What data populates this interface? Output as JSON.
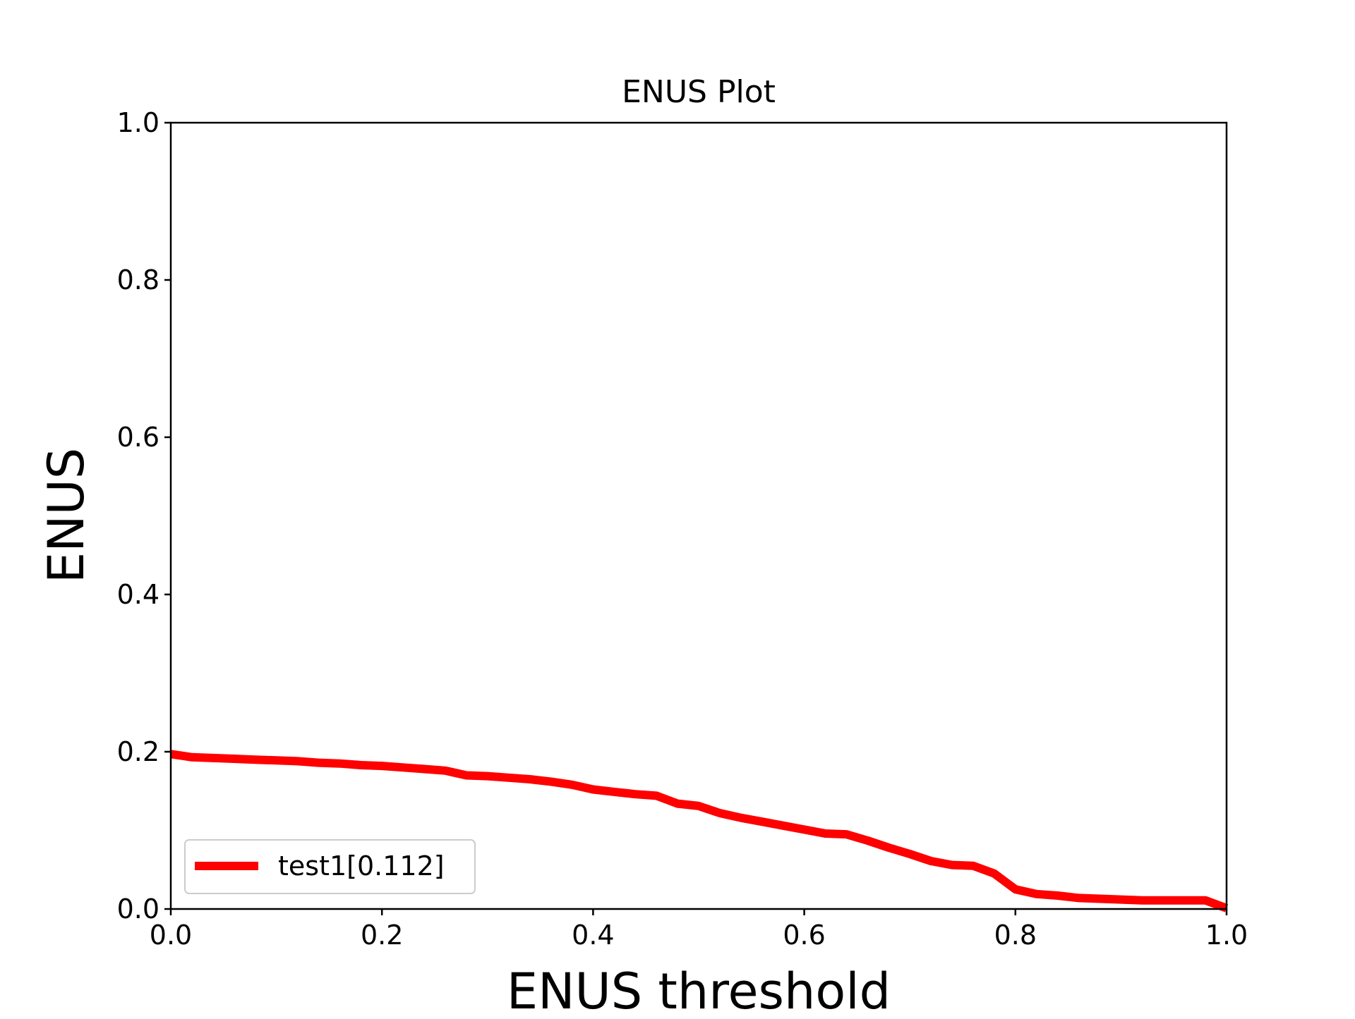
{
  "chart_data": {
    "type": "line",
    "title": "ENUS Plot",
    "xlabel": "ENUS threshold",
    "ylabel": "ENUS",
    "xlim": [
      0.0,
      1.0
    ],
    "ylim": [
      0.0,
      1.0
    ],
    "xticks": [
      "0.0",
      "0.2",
      "0.4",
      "0.6",
      "0.8",
      "1.0"
    ],
    "yticks": [
      "0.0",
      "0.2",
      "0.4",
      "0.6",
      "0.8",
      "1.0"
    ],
    "grid": false,
    "legend_position": "lower-left",
    "series": [
      {
        "name": "test1[0.112]",
        "color": "#ff0000",
        "x": [
          0.0,
          0.02,
          0.04,
          0.06,
          0.08,
          0.1,
          0.12,
          0.14,
          0.16,
          0.18,
          0.2,
          0.22,
          0.24,
          0.26,
          0.28,
          0.3,
          0.32,
          0.34,
          0.36,
          0.38,
          0.4,
          0.42,
          0.44,
          0.46,
          0.48,
          0.5,
          0.52,
          0.54,
          0.56,
          0.58,
          0.6,
          0.62,
          0.64,
          0.66,
          0.68,
          0.7,
          0.72,
          0.74,
          0.76,
          0.78,
          0.8,
          0.82,
          0.84,
          0.86,
          0.88,
          0.9,
          0.92,
          0.94,
          0.96,
          0.98,
          1.0
        ],
        "y": [
          0.197,
          0.193,
          0.192,
          0.191,
          0.19,
          0.189,
          0.188,
          0.186,
          0.185,
          0.183,
          0.182,
          0.18,
          0.178,
          0.176,
          0.17,
          0.169,
          0.167,
          0.165,
          0.162,
          0.158,
          0.152,
          0.149,
          0.146,
          0.144,
          0.134,
          0.131,
          0.122,
          0.116,
          0.111,
          0.106,
          0.101,
          0.096,
          0.095,
          0.087,
          0.078,
          0.07,
          0.061,
          0.056,
          0.055,
          0.045,
          0.025,
          0.019,
          0.017,
          0.014,
          0.013,
          0.012,
          0.011,
          0.011,
          0.011,
          0.011,
          0.001
        ]
      }
    ]
  }
}
